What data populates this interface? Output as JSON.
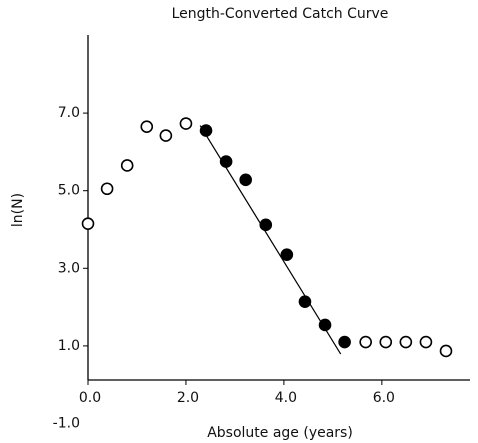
{
  "chart_data": {
    "type": "scatter",
    "title": "Length-Converted Catch Curve",
    "xlabel": "Absolute age (years)",
    "ylabel": "ln(N)",
    "xlim": [
      0,
      7.8
    ],
    "ylim": [
      -1.0,
      9.0
    ],
    "xticks": [
      {
        "value": 0,
        "label": "0.0"
      },
      {
        "value": 2,
        "label": "2.0"
      },
      {
        "value": 4,
        "label": "4.0"
      },
      {
        "value": 6,
        "label": "6.0"
      }
    ],
    "yticks": [
      {
        "value": -1,
        "label": "-1.0"
      },
      {
        "value": 1,
        "label": "1.0"
      },
      {
        "value": 3,
        "label": "3.0"
      },
      {
        "value": 5,
        "label": "5.0"
      },
      {
        "value": 7,
        "label": "7.0"
      }
    ],
    "series": [
      {
        "color": "#000000",
        "filled": false,
        "x": [
          0.0,
          0.39,
          0.8,
          1.2,
          1.59,
          2.0
        ],
        "values": [
          4.15,
          5.05,
          5.65,
          6.65,
          6.42,
          6.73
        ]
      },
      {
        "color": "#000000",
        "filled": true,
        "x": [
          2.41,
          2.82,
          3.22,
          3.63,
          4.06,
          4.43,
          4.84,
          5.24
        ],
        "values": [
          6.55,
          5.75,
          5.28,
          4.12,
          3.35,
          2.14,
          1.54,
          1.1
        ]
      },
      {
        "color": "#000000",
        "filled": false,
        "x": [
          5.67,
          6.08,
          6.49,
          6.9,
          7.31
        ],
        "values": [
          1.1,
          1.1,
          1.1,
          1.1,
          0.87
        ]
      }
    ],
    "fit_line": {
      "color": "#000000",
      "x": [
        2.29,
        5.16
      ],
      "values": [
        6.68,
        0.79
      ]
    }
  }
}
